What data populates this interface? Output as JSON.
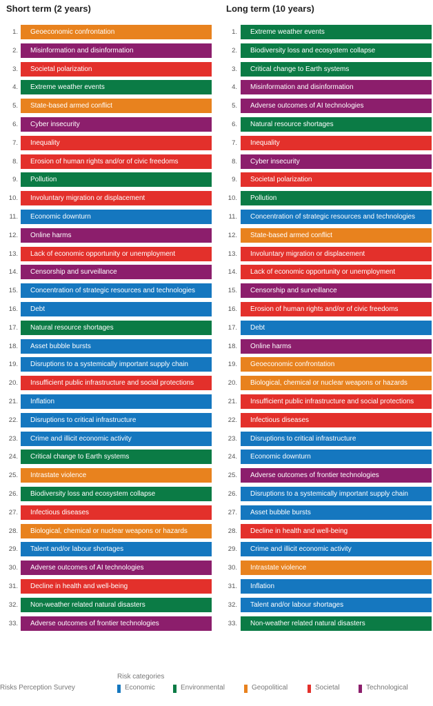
{
  "columns": [
    {
      "title": "Short term (2 years)",
      "items": [
        {
          "rank": "1.",
          "label": "Geoeconomic confrontation",
          "category": "Geopolitical"
        },
        {
          "rank": "2.",
          "label": "Misinformation and disinformation",
          "category": "Technological"
        },
        {
          "rank": "3.",
          "label": "Societal polarization",
          "category": "Societal"
        },
        {
          "rank": "4.",
          "label": "Extreme weather events",
          "category": "Environmental"
        },
        {
          "rank": "5.",
          "label": "State-based armed conflict",
          "category": "Geopolitical"
        },
        {
          "rank": "6.",
          "label": "Cyber insecurity",
          "category": "Technological"
        },
        {
          "rank": "7.",
          "label": "Inequality",
          "category": "Societal"
        },
        {
          "rank": "8.",
          "label": "Erosion of human rights and/or of civic freedoms",
          "category": "Societal"
        },
        {
          "rank": "9.",
          "label": "Pollution",
          "category": "Environmental"
        },
        {
          "rank": "10.",
          "label": "Involuntary migration or displacement",
          "category": "Societal"
        },
        {
          "rank": "11.",
          "label": "Economic downturn",
          "category": "Economic"
        },
        {
          "rank": "12.",
          "label": "Online harms",
          "category": "Technological"
        },
        {
          "rank": "13.",
          "label": "Lack of economic opportunity or unemployment",
          "category": "Societal"
        },
        {
          "rank": "14.",
          "label": "Censorship and surveillance",
          "category": "Technological"
        },
        {
          "rank": "15.",
          "label": "Concentration of strategic resources and technologies",
          "category": "Economic"
        },
        {
          "rank": "16.",
          "label": "Debt",
          "category": "Economic"
        },
        {
          "rank": "17.",
          "label": "Natural resource shortages",
          "category": "Environmental"
        },
        {
          "rank": "18.",
          "label": "Asset bubble bursts",
          "category": "Economic"
        },
        {
          "rank": "19.",
          "label": "Disruptions to a systemically important supply chain",
          "category": "Economic"
        },
        {
          "rank": "20.",
          "label": "Insufficient public infrastructure and social protections",
          "category": "Societal"
        },
        {
          "rank": "21.",
          "label": "Inflation",
          "category": "Economic"
        },
        {
          "rank": "22.",
          "label": "Disruptions to critical infrastructure",
          "category": "Economic"
        },
        {
          "rank": "23.",
          "label": "Crime and illicit economic activity",
          "category": "Economic"
        },
        {
          "rank": "24.",
          "label": "Critical change to Earth systems",
          "category": "Environmental"
        },
        {
          "rank": "25.",
          "label": "Intrastate violence",
          "category": "Geopolitical"
        },
        {
          "rank": "26.",
          "label": "Biodiversity loss and ecosystem collapse",
          "category": "Environmental"
        },
        {
          "rank": "27.",
          "label": "Infectious diseases",
          "category": "Societal"
        },
        {
          "rank": "28.",
          "label": "Biological, chemical or nuclear weapons or hazards",
          "category": "Geopolitical"
        },
        {
          "rank": "29.",
          "label": "Talent and/or labour shortages",
          "category": "Economic"
        },
        {
          "rank": "30.",
          "label": "Adverse outcomes of AI technologies",
          "category": "Technological"
        },
        {
          "rank": "31.",
          "label": "Decline in health and well-being",
          "category": "Societal"
        },
        {
          "rank": "32.",
          "label": "Non-weather related natural disasters",
          "category": "Environmental"
        },
        {
          "rank": "33.",
          "label": "Adverse outcomes of frontier technologies",
          "category": "Technological"
        }
      ]
    },
    {
      "title": "Long term (10 years)",
      "items": [
        {
          "rank": "1.",
          "label": "Extreme weather events",
          "category": "Environmental"
        },
        {
          "rank": "2.",
          "label": "Biodiversity loss and ecosystem collapse",
          "category": "Environmental"
        },
        {
          "rank": "3.",
          "label": "Critical change to Earth systems",
          "category": "Environmental"
        },
        {
          "rank": "4.",
          "label": "Misinformation and disinformation",
          "category": "Technological"
        },
        {
          "rank": "5.",
          "label": "Adverse outcomes of AI technologies",
          "category": "Technological"
        },
        {
          "rank": "6.",
          "label": "Natural resource shortages",
          "category": "Environmental"
        },
        {
          "rank": "7.",
          "label": "Inequality",
          "category": "Societal"
        },
        {
          "rank": "8.",
          "label": "Cyber insecurity",
          "category": "Technological"
        },
        {
          "rank": "9.",
          "label": "Societal polarization",
          "category": "Societal"
        },
        {
          "rank": "10.",
          "label": "Pollution",
          "category": "Environmental"
        },
        {
          "rank": "11.",
          "label": "Concentration of strategic resources and technologies",
          "category": "Economic"
        },
        {
          "rank": "12.",
          "label": "State-based armed conflict",
          "category": "Geopolitical"
        },
        {
          "rank": "13.",
          "label": "Involuntary migration or displacement",
          "category": "Societal"
        },
        {
          "rank": "14.",
          "label": "Lack of economic opportunity or unemployment",
          "category": "Societal"
        },
        {
          "rank": "15.",
          "label": "Censorship and surveillance",
          "category": "Technological"
        },
        {
          "rank": "16.",
          "label": "Erosion of human rights and/or of civic freedoms",
          "category": "Societal"
        },
        {
          "rank": "17.",
          "label": "Debt",
          "category": "Economic"
        },
        {
          "rank": "18.",
          "label": "Online harms",
          "category": "Technological"
        },
        {
          "rank": "19.",
          "label": "Geoeconomic confrontation",
          "category": "Geopolitical"
        },
        {
          "rank": "20.",
          "label": "Biological, chemical or nuclear weapons or hazards",
          "category": "Geopolitical"
        },
        {
          "rank": "21.",
          "label": "Insufficient public infrastructure and social protections",
          "category": "Societal"
        },
        {
          "rank": "22.",
          "label": "Infectious diseases",
          "category": "Societal"
        },
        {
          "rank": "23.",
          "label": "Disruptions to critical infrastructure",
          "category": "Economic"
        },
        {
          "rank": "24.",
          "label": "Economic downturn",
          "category": "Economic"
        },
        {
          "rank": "25.",
          "label": "Adverse outcomes of frontier technologies",
          "category": "Technological"
        },
        {
          "rank": "26.",
          "label": "Disruptions to a systemically important supply chain",
          "category": "Economic"
        },
        {
          "rank": "27.",
          "label": "Asset bubble bursts",
          "category": "Economic"
        },
        {
          "rank": "28.",
          "label": "Decline in health and well-being",
          "category": "Societal"
        },
        {
          "rank": "29.",
          "label": "Crime and illicit economic activity",
          "category": "Economic"
        },
        {
          "rank": "30.",
          "label": "Intrastate violence",
          "category": "Geopolitical"
        },
        {
          "rank": "31.",
          "label": "Inflation",
          "category": "Economic"
        },
        {
          "rank": "32.",
          "label": "Talent and/or labour shortages",
          "category": "Economic"
        },
        {
          "rank": "33.",
          "label": "Non-weather related natural disasters",
          "category": "Environmental"
        }
      ]
    }
  ],
  "footer": {
    "source": "Risks Perception Survey"
  },
  "legend": {
    "title": "Risk categories",
    "categories": [
      {
        "name": "Economic",
        "color": "#1577bf"
      },
      {
        "name": "Environmental",
        "color": "#0b7b45"
      },
      {
        "name": "Geopolitical",
        "color": "#e8821e"
      },
      {
        "name": "Societal",
        "color": "#e3302b"
      },
      {
        "name": "Technological",
        "color": "#8c1e6c"
      }
    ]
  }
}
